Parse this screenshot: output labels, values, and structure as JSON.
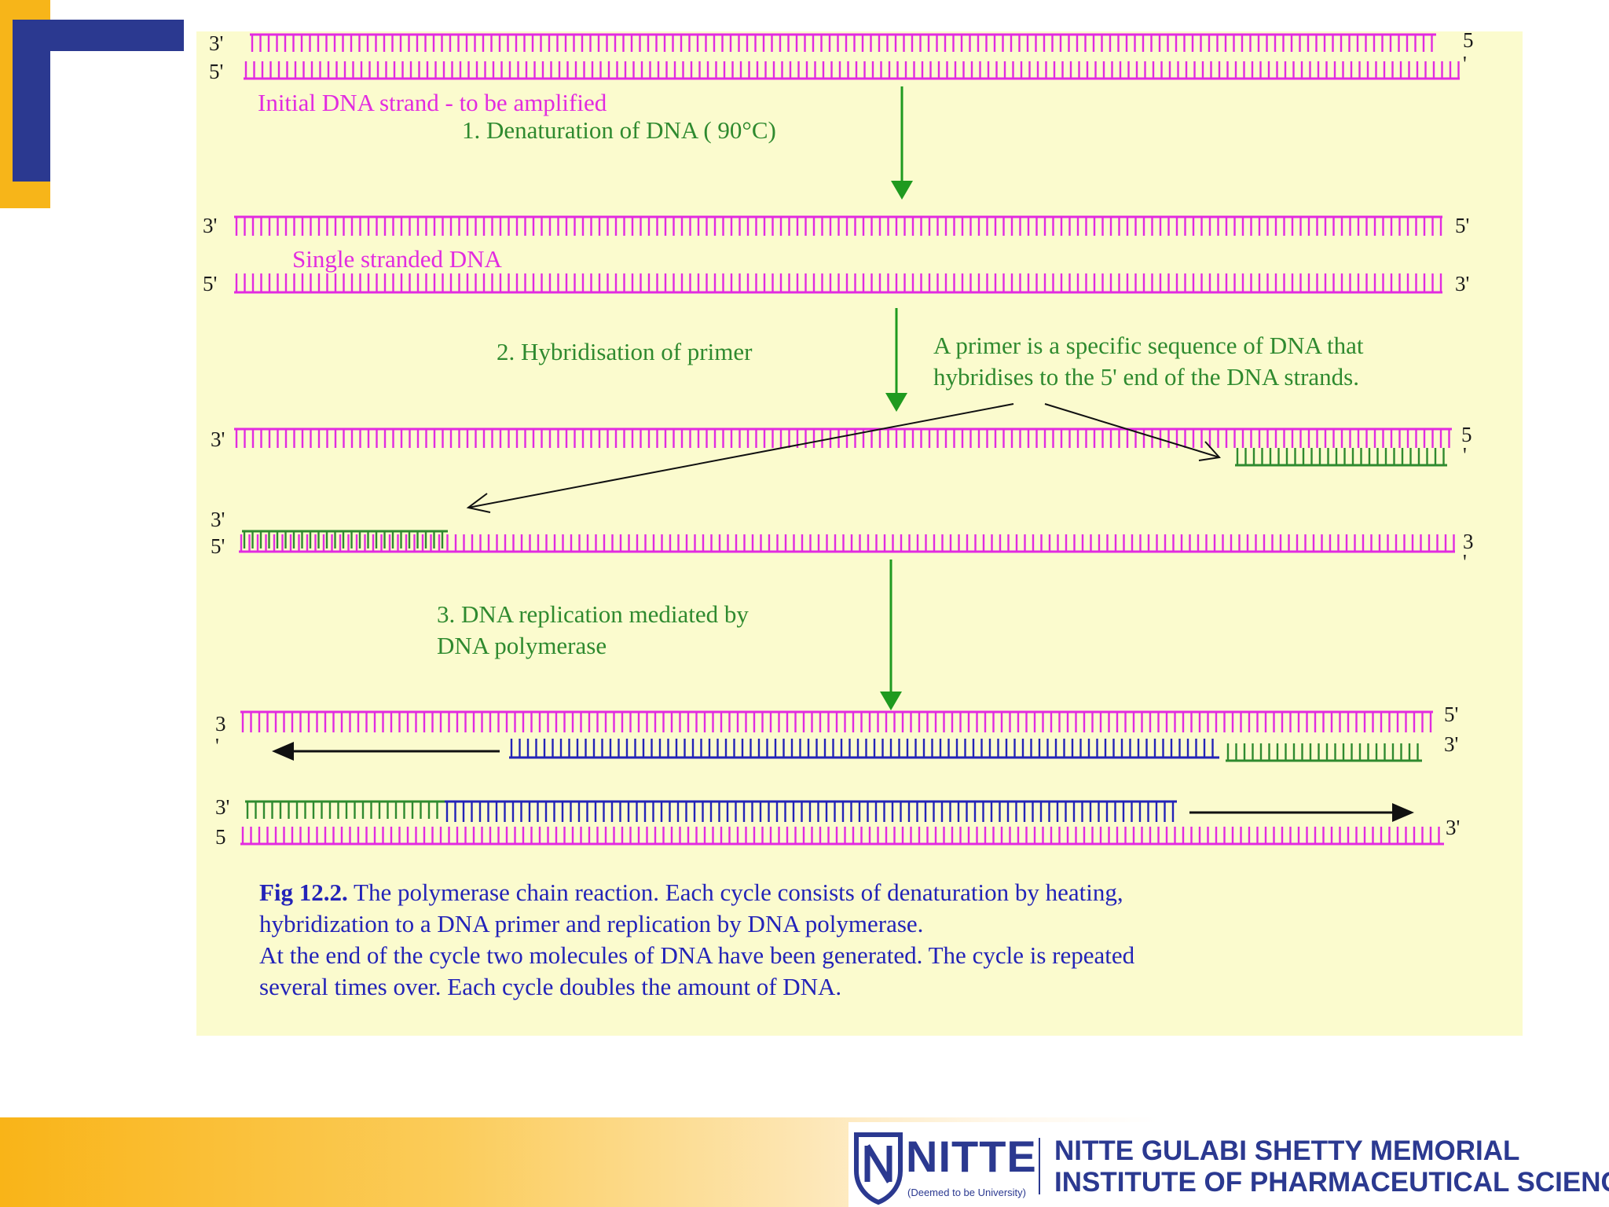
{
  "figure": {
    "labels": {
      "initial_strand": "Initial DNA strand  - to be amplified",
      "step1": "1. Denaturation  of DNA ( 90°C)",
      "single_stranded": "Single stranded DNA",
      "step2": "2. Hybridisation of primer",
      "primer_note_1": "A primer is a specific sequence of DNA that",
      "primer_note_2": "hybridises to the 5' end of the DNA strands.",
      "step3_1": "3. DNA replication  mediated by",
      "step3_2": "DNA polymerase"
    },
    "end_labels": {
      "three_prime": "3'",
      "five_prime": "5'",
      "digit_three": "3",
      "digit_five": "5",
      "prime_mark": "'"
    },
    "caption": {
      "fig_ref": "Fig 12.2.",
      "line1": "   The polymerase chain reaction. Each cycle consists of denaturation by heating,",
      "line2": "hybridization to a DNA primer and replication by DNA polymerase.",
      "line3": "At the end of the cycle two molecules of DNA have been generated.  The cycle is repeated",
      "line4": "several times over.  Each cycle doubles the amount of DNA."
    },
    "colors": {
      "template_strand": "#e22be0",
      "primer_strand": "#2f8a2f",
      "new_strand": "#2323b8",
      "step_arrow": "#1f9a1f",
      "pointer_arrow": "#111111",
      "panel_bg": "#fbfbce"
    }
  },
  "footer": {
    "brand": "NITTE",
    "brand_tagline": "(Deemed to be University)",
    "institute_line1": "NITTE GULABI SHETTY MEMORIAL",
    "institute_line2": "INSTITUTE OF PHARMACEUTICAL SCIENCES",
    "accent_color": "#f7b519",
    "brand_color": "#2b3990"
  }
}
